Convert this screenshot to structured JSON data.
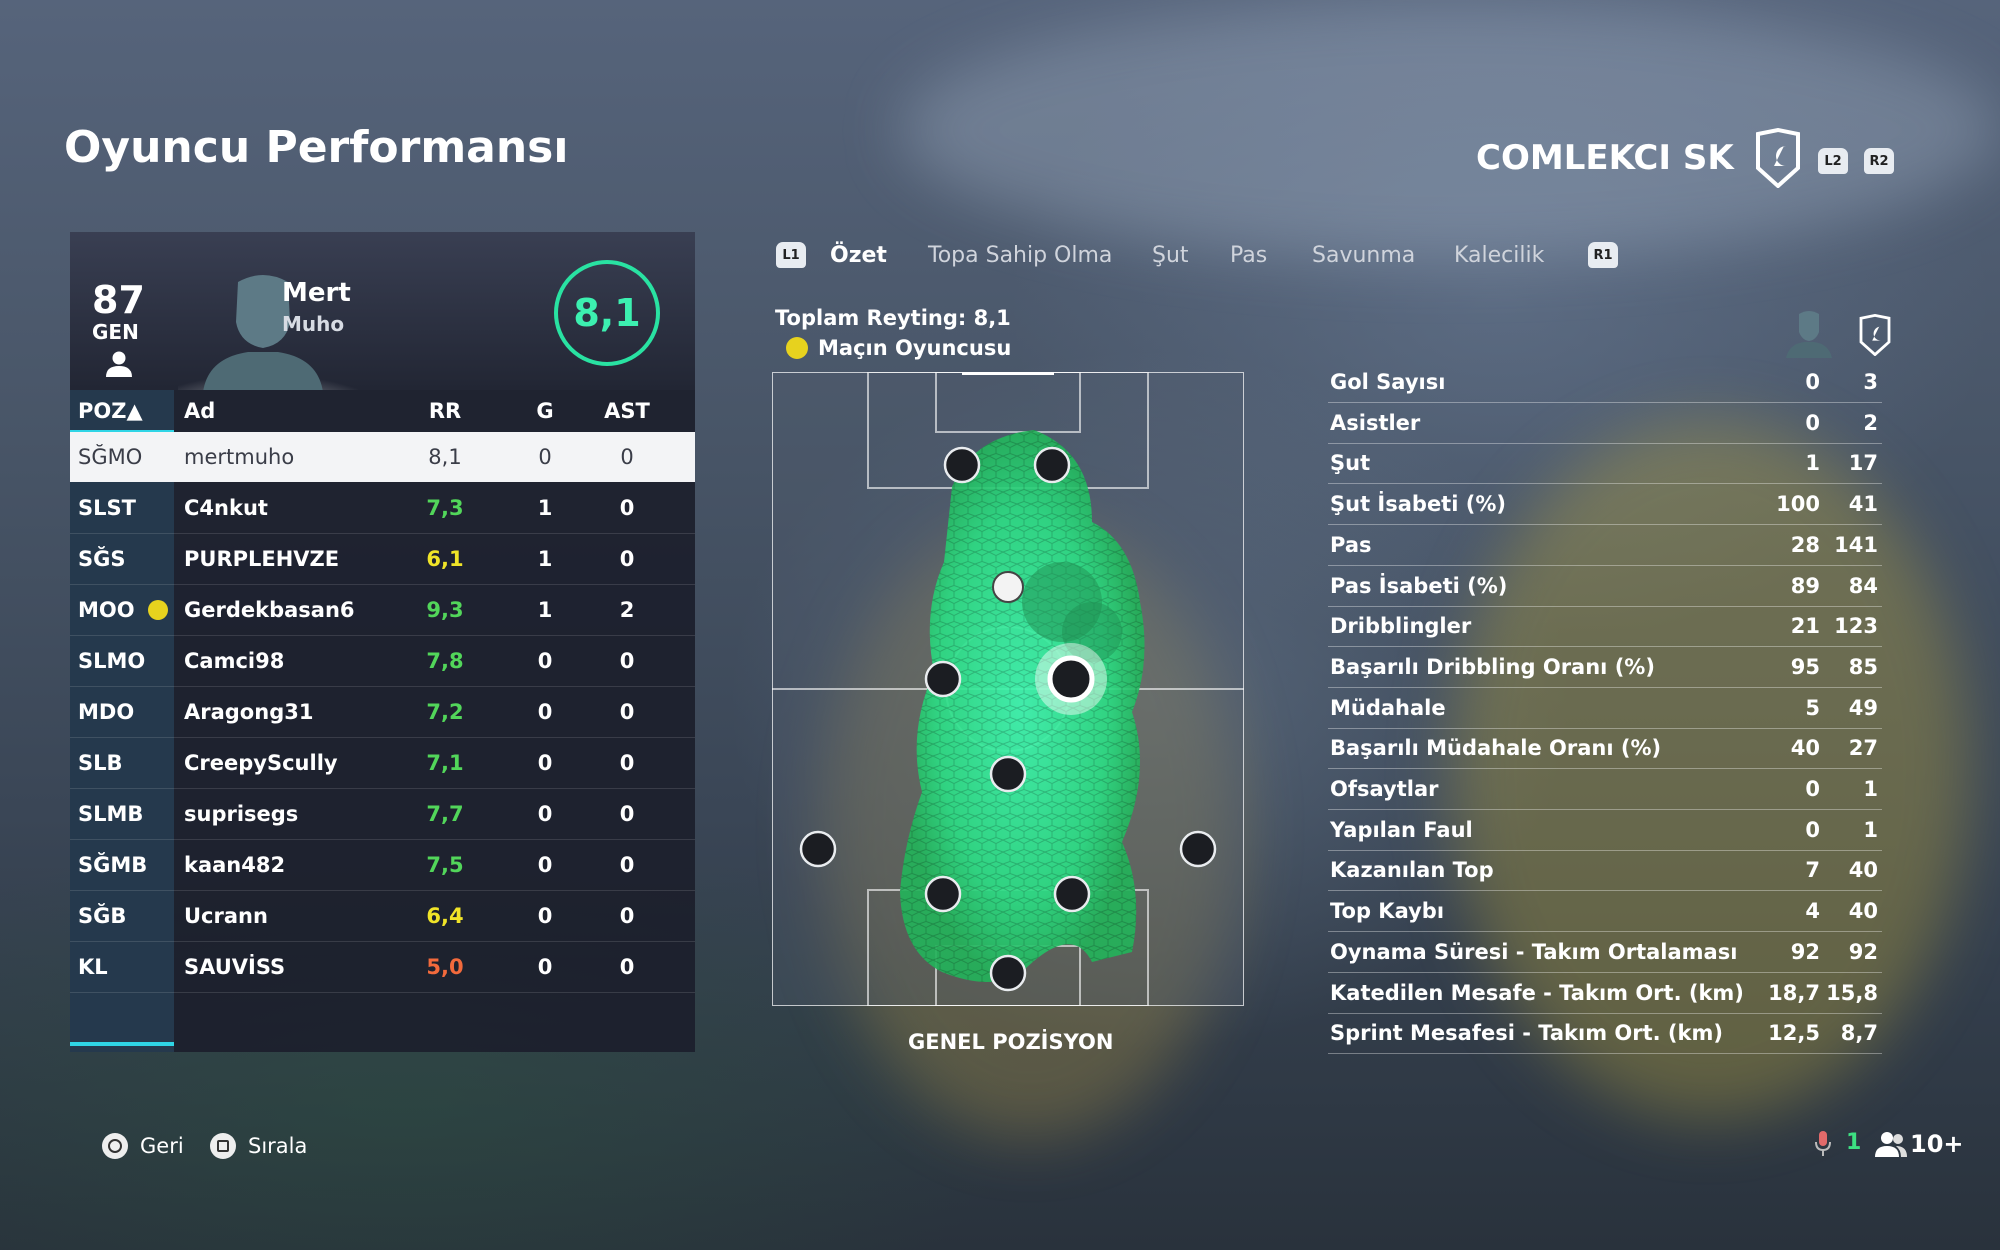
{
  "page": {
    "title": "Oyuncu Performansı"
  },
  "team": {
    "name": "COMLEKCI SK",
    "prev_trigger": "L2",
    "next_trigger": "R2"
  },
  "player": {
    "overall": "87",
    "overall_label": "GEN",
    "first_name": "Mert",
    "last_name": "Muho",
    "match_rating": "8,1"
  },
  "table": {
    "headers": {
      "pos": "POZ▲",
      "name": "Ad",
      "rr": "RR",
      "g": "G",
      "ast": "AST"
    },
    "rows": [
      {
        "pos": "SĞMO",
        "name": "mertmuho",
        "rr": "8,1",
        "rr_color": "#3a3d48",
        "g": "0",
        "ast": "0",
        "motm": false
      },
      {
        "pos": "SLST",
        "name": "C4nkut",
        "rr": "7,3",
        "rr_color": "#52d65a",
        "g": "1",
        "ast": "0",
        "motm": false
      },
      {
        "pos": "SĞS",
        "name": "PURPLEHVZE",
        "rr": "6,1",
        "rr_color": "#f0e428",
        "g": "1",
        "ast": "0",
        "motm": false
      },
      {
        "pos": "MOO",
        "name": "Gerdekbasan6",
        "rr": "9,3",
        "rr_color": "#52d65a",
        "g": "1",
        "ast": "2",
        "motm": true
      },
      {
        "pos": "SLMO",
        "name": "Camci98",
        "rr": "7,8",
        "rr_color": "#52d65a",
        "g": "0",
        "ast": "0",
        "motm": false
      },
      {
        "pos": "MDO",
        "name": "Aragong31",
        "rr": "7,2",
        "rr_color": "#52d65a",
        "g": "0",
        "ast": "0",
        "motm": false
      },
      {
        "pos": "SLB",
        "name": "CreepyScully",
        "rr": "7,1",
        "rr_color": "#52d65a",
        "g": "0",
        "ast": "0",
        "motm": false
      },
      {
        "pos": "SLMB",
        "name": "suprisegs",
        "rr": "7,7",
        "rr_color": "#52d65a",
        "g": "0",
        "ast": "0",
        "motm": false
      },
      {
        "pos": "SĞMB",
        "name": "kaan482",
        "rr": "7,5",
        "rr_color": "#52d65a",
        "g": "0",
        "ast": "0",
        "motm": false
      },
      {
        "pos": "SĞB",
        "name": "Ucrann",
        "rr": "6,4",
        "rr_color": "#f0e428",
        "g": "0",
        "ast": "0",
        "motm": false
      },
      {
        "pos": "KL",
        "name": "SAUVİSS",
        "rr": "5,0",
        "rr_color": "#f26a3c",
        "g": "0",
        "ast": "0",
        "motm": false
      }
    ]
  },
  "tabs": {
    "prev_bumper": "L1",
    "next_bumper": "R1",
    "items": [
      "Özet",
      "Topa Sahip Olma",
      "Şut",
      "Pas",
      "Savunma",
      "Kalecilik"
    ],
    "active": "Özet"
  },
  "summary": {
    "total_rating": "Toplam Reyting: 8,1",
    "motm_label": "Maçın Oyuncusu",
    "pitch_caption": "GENEL POZİSYON"
  },
  "stats": [
    {
      "label": "Gol Sayısı",
      "player": "0",
      "team": "3"
    },
    {
      "label": "Asistler",
      "player": "0",
      "team": "2"
    },
    {
      "label": "Şut",
      "player": "1",
      "team": "17"
    },
    {
      "label": "Şut İsabeti (%)",
      "player": "100",
      "team": "41"
    },
    {
      "label": "Pas",
      "player": "28",
      "team": "141"
    },
    {
      "label": "Pas İsabeti (%)",
      "player": "89",
      "team": "84"
    },
    {
      "label": "Dribblingler",
      "player": "21",
      "team": "123"
    },
    {
      "label": "Başarılı Dribbling Oranı (%)",
      "player": "95",
      "team": "85"
    },
    {
      "label": "Müdahale",
      "player": "5",
      "team": "49"
    },
    {
      "label": "Başarılı Müdahale Oranı (%)",
      "player": "40",
      "team": "27"
    },
    {
      "label": "Ofsaytlar",
      "player": "0",
      "team": "1"
    },
    {
      "label": "Yapılan Faul",
      "player": "0",
      "team": "1"
    },
    {
      "label": "Kazanılan Top",
      "player": "7",
      "team": "40"
    },
    {
      "label": "Top Kaybı",
      "player": "4",
      "team": "40"
    },
    {
      "label": "Oynama Süresi - Takım Ortalaması",
      "player": "92",
      "team": "92"
    },
    {
      "label": "Katedilen Mesafe - Takım Ort. (km)",
      "player": "18,7",
      "team": "15,8"
    },
    {
      "label": "Sprint Mesafesi - Takım Ort. (km)",
      "player": "12,5",
      "team": "8,7"
    }
  ],
  "footer": {
    "back_label": "Geri",
    "sort_label": "Sırala",
    "mic_count": "1",
    "party_count": "10+"
  },
  "colors": {
    "accent": "#2fd5e6",
    "rating_ring": "#29e2a2",
    "heatmap": "#2ff5a0"
  }
}
